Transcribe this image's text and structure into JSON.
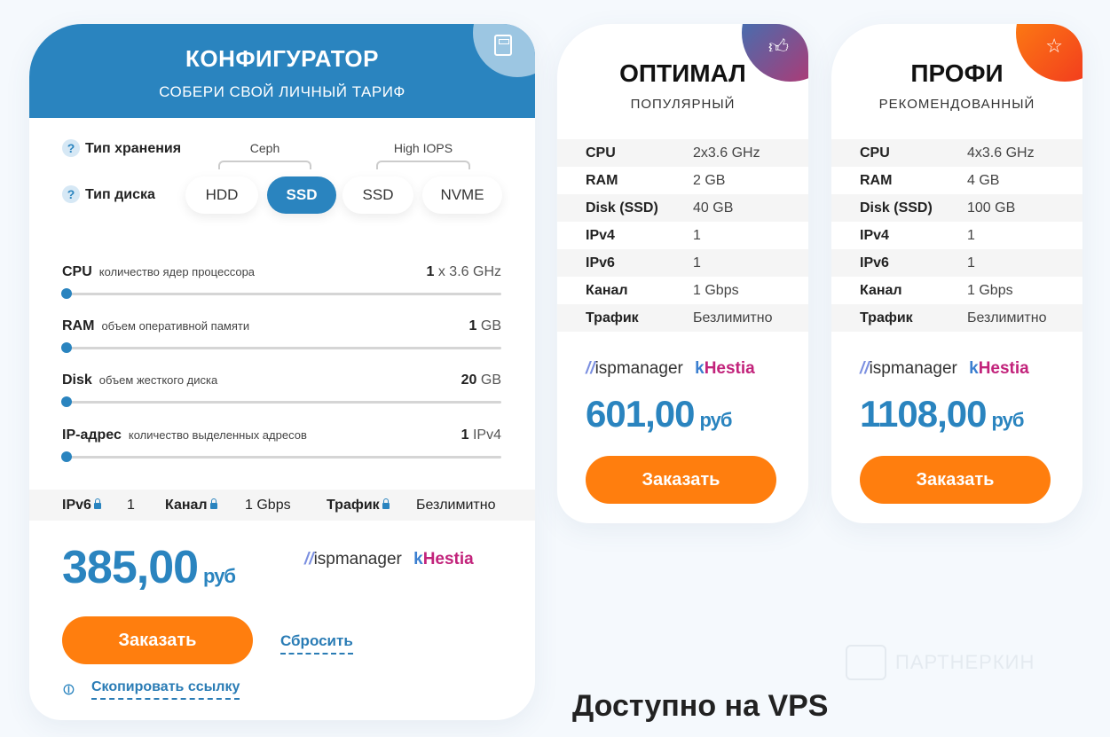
{
  "configurator": {
    "title": "КОНФИГУРАТОР",
    "subtitle": "СОБЕРИ СВОЙ ЛИЧНЫЙ ТАРИФ",
    "icon": "calculator-icon",
    "storage_label": "Тип хранения",
    "disk_label": "Тип диска",
    "help": "?",
    "groups": [
      "Ceph",
      "High IOPS"
    ],
    "disk_options": [
      {
        "label": "HDD",
        "selected": false
      },
      {
        "label": "SSD",
        "selected": true
      },
      {
        "label": "SSD",
        "selected": false
      },
      {
        "label": "NVME",
        "selected": false
      }
    ],
    "sliders": [
      {
        "name": "CPU",
        "desc": "количество ядер процессора",
        "value": "1",
        "unit": "x 3.6 GHz",
        "level": 0
      },
      {
        "name": "RAM",
        "desc": "объем оперативной памяти",
        "value": "1",
        "unit": "GB",
        "level": 0
      },
      {
        "name": "Disk",
        "desc": "объем жесткого диска",
        "value": "20",
        "unit": "GB",
        "level": 0
      },
      {
        "name": "IP-адрес",
        "desc": "количество выделенных адресов",
        "value": "1",
        "unit": "IPv4",
        "level": 0
      }
    ],
    "fixed": [
      {
        "k": "IPv6",
        "v": "1"
      },
      {
        "k": "Канал",
        "v": "1 Gbps"
      },
      {
        "k": "Трафик",
        "v": "Безлимитно"
      }
    ],
    "price": "385,00",
    "currency": "руб",
    "order": "Заказать",
    "reset": "Сбросить",
    "copy": "Скопировать ссылку"
  },
  "logos": {
    "isp": "ispmanager",
    "hestia": "Hestia"
  },
  "plans": [
    {
      "title": "ОПТИМАЛ",
      "tag": "ПОПУЛЯРНЫЙ",
      "icon": "thumbs-up-icon",
      "specs": [
        [
          "CPU",
          "2x3.6 GHz"
        ],
        [
          "RAM",
          "2 GB"
        ],
        [
          "Disk (SSD)",
          "40 GB"
        ],
        [
          "IPv4",
          "1"
        ],
        [
          "IPv6",
          "1"
        ],
        [
          "Канал",
          "1 Gbps"
        ],
        [
          "Трафик",
          "Безлимитно"
        ]
      ],
      "price": "601,00",
      "currency": "руб",
      "order": "Заказать"
    },
    {
      "title": "ПРОФИ",
      "tag": "РЕКОМЕНДОВАННЫЙ",
      "icon": "star-icon",
      "specs": [
        [
          "CPU",
          "4x3.6 GHz"
        ],
        [
          "RAM",
          "4 GB"
        ],
        [
          "Disk (SSD)",
          "100 GB"
        ],
        [
          "IPv4",
          "1"
        ],
        [
          "IPv6",
          "1"
        ],
        [
          "Канал",
          "1 Gbps"
        ],
        [
          "Трафик",
          "Безлимитно"
        ]
      ],
      "price": "1108,00",
      "currency": "руб",
      "order": "Заказать"
    }
  ],
  "watermark": "ПАРТНЕРКИН",
  "footer": "Доступно на VPS"
}
